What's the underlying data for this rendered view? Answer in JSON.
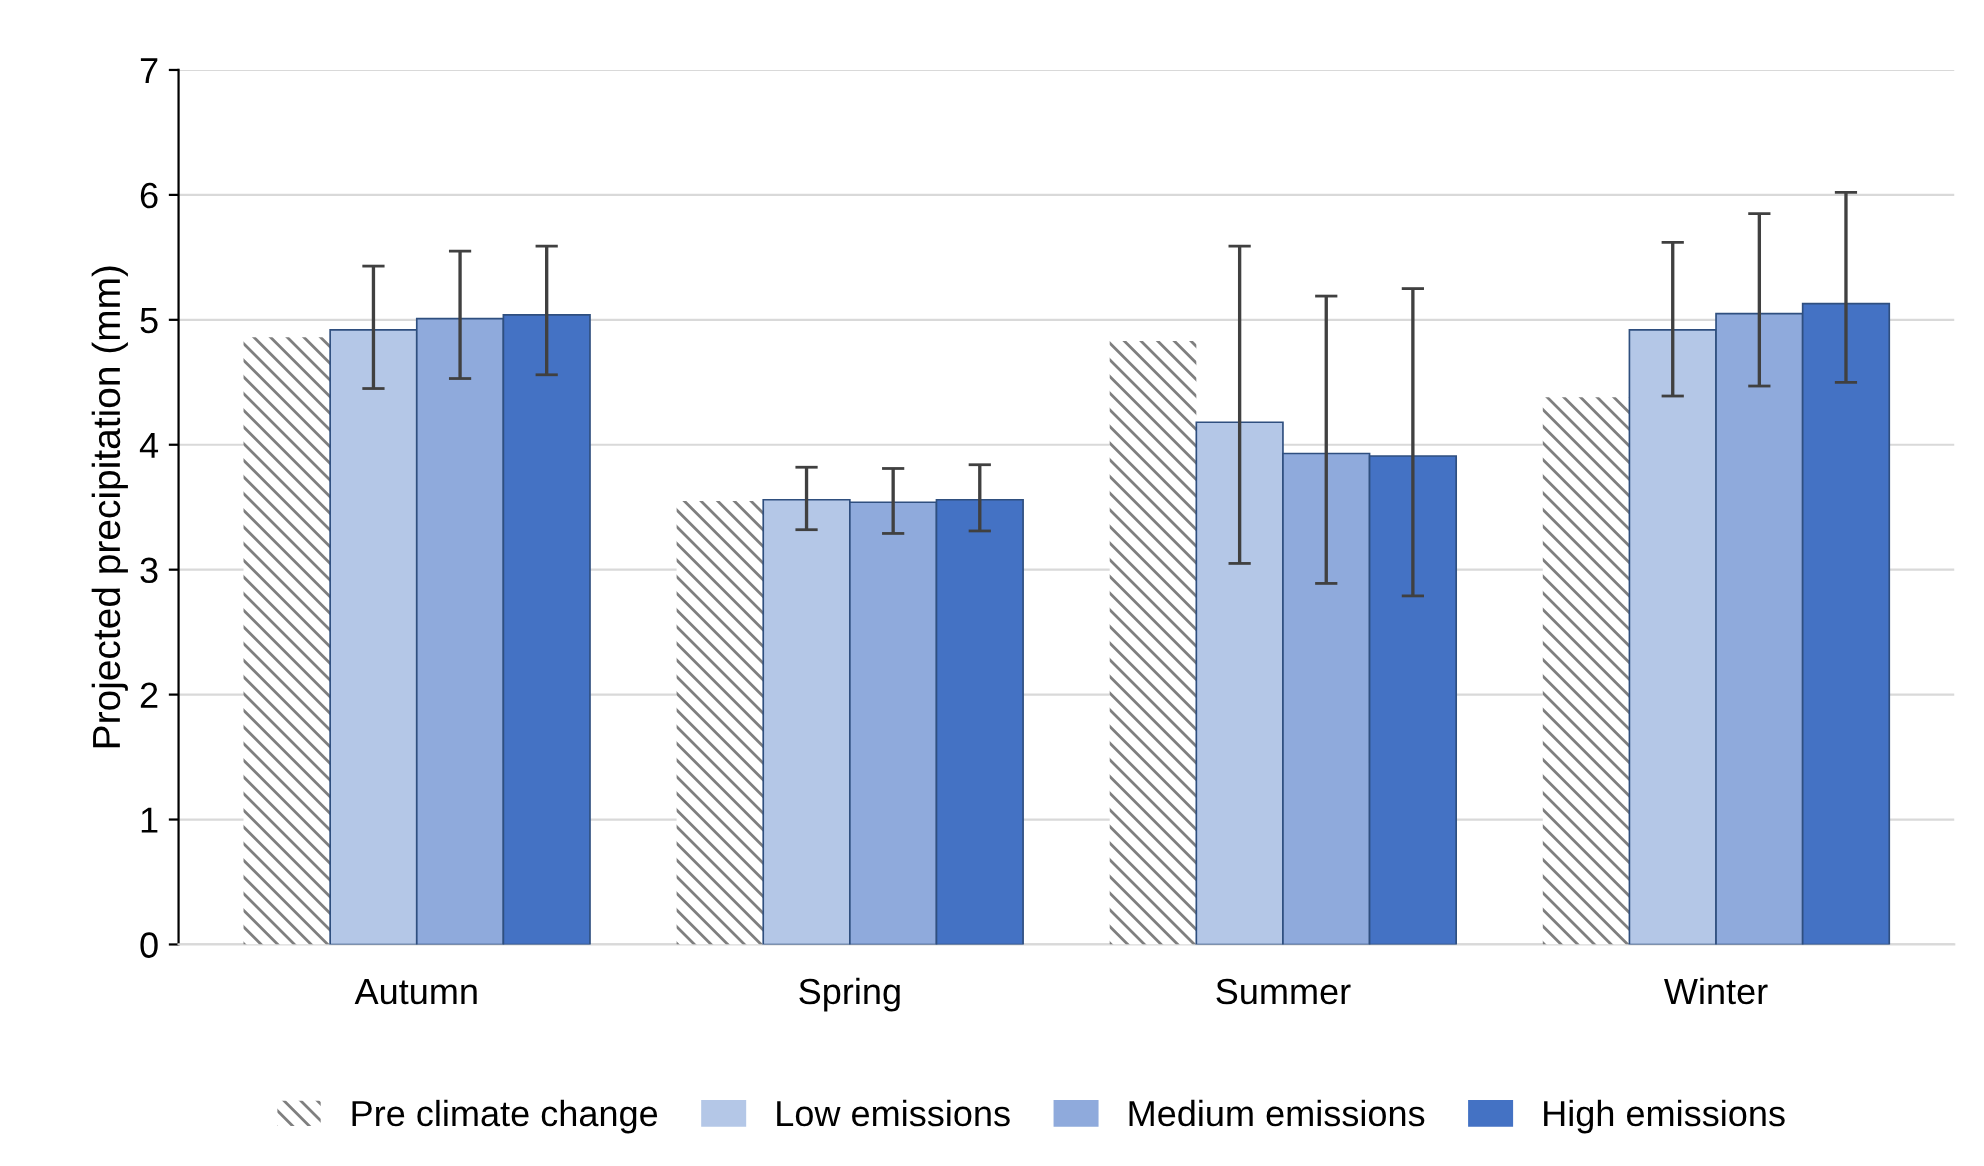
{
  "chart_data": {
    "type": "bar",
    "ylabel": "Projected precipitation (mm)",
    "categories": [
      "Autumn",
      "Spring",
      "Summer",
      "Winter"
    ],
    "series": [
      {
        "name": "Pre climate change",
        "color": "#7f7f7f",
        "values": [
          4.86,
          3.55,
          4.83,
          4.38
        ]
      },
      {
        "name": "Low emissions",
        "color": "#b4c7e7",
        "values": [
          4.92,
          3.56,
          4.18,
          4.92
        ],
        "errors": [
          [
            4.45,
            5.43
          ],
          [
            3.32,
            3.82
          ],
          [
            3.05,
            5.59
          ],
          [
            4.39,
            5.62
          ]
        ]
      },
      {
        "name": "Medium emissions",
        "color": "#8faadc",
        "values": [
          5.01,
          3.54,
          3.93,
          5.05
        ],
        "errors": [
          [
            4.53,
            5.55
          ],
          [
            3.29,
            3.81
          ],
          [
            2.89,
            5.19
          ],
          [
            4.47,
            5.85
          ]
        ]
      },
      {
        "name": "High emissions",
        "color": "#4472c4",
        "values": [
          5.04,
          3.56,
          3.91,
          5.13
        ],
        "errors": [
          [
            4.56,
            5.59
          ],
          [
            3.31,
            3.84
          ],
          [
            2.79,
            5.25
          ],
          [
            4.5,
            6.02
          ]
        ]
      }
    ],
    "ylim": [
      0,
      7
    ],
    "yticks": [
      0,
      1,
      2,
      3,
      4,
      5,
      6,
      7
    ],
    "grid": "y",
    "legend": "bottom"
  }
}
